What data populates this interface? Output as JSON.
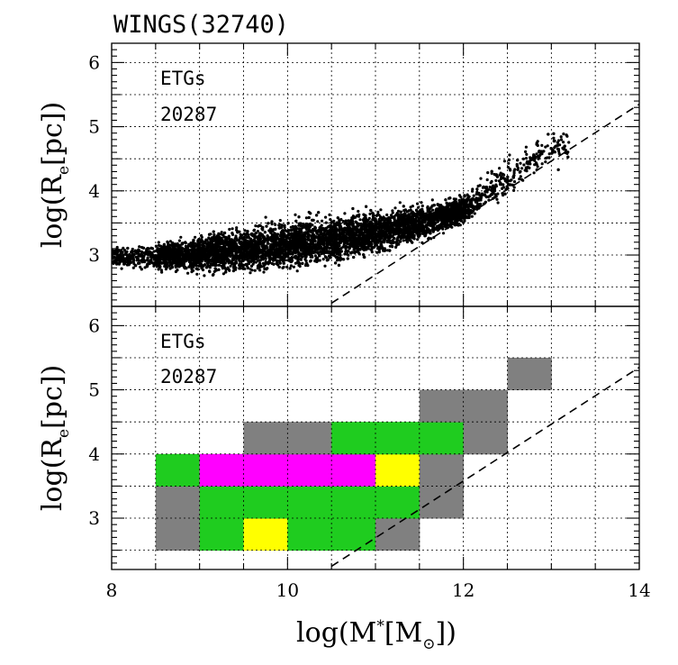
{
  "colors": {
    "grey": "#808080",
    "green": "#1fcc1f",
    "magenta": "#ff00ff",
    "yellow": "#ffff00",
    "black": "#000000"
  },
  "chart_data": [
    {
      "type": "scatter",
      "title": "WINGS(32740)",
      "annotation": "ETGs",
      "count": "20287",
      "ylabel": "log(R",
      "ylabel_sub": "e",
      "ylabel_end": "[pc])",
      "xlim": [
        8,
        14
      ],
      "ylim": [
        2.2,
        6.3
      ],
      "yticks": [
        3,
        4,
        5,
        6
      ],
      "grid": true,
      "dashed_line": {
        "x": [
          10.5,
          14
        ],
        "y": [
          2.25,
          5.35
        ]
      },
      "density_ridge": {
        "x": [
          8.0,
          8.5,
          9.0,
          9.5,
          10.0,
          10.5,
          11.0,
          11.5,
          12.0,
          12.5,
          13.0
        ],
        "y_mid": [
          2.95,
          2.98,
          3.02,
          3.08,
          3.17,
          3.25,
          3.35,
          3.5,
          3.7,
          4.2,
          4.7
        ],
        "half_width": [
          0.12,
          0.18,
          0.25,
          0.3,
          0.33,
          0.33,
          0.3,
          0.25,
          0.22,
          0.25,
          0.25
        ]
      }
    },
    {
      "type": "heatmap",
      "annotation": "ETGs",
      "count": "20287",
      "ylabel": "log(R",
      "ylabel_sub": "e",
      "ylabel_end": "[pc])",
      "xlabel": "log(M",
      "xlabel_sup": "*",
      "xlabel_mid": "[M",
      "xlabel_sun": "⊙",
      "xlabel_end": "])",
      "xlim": [
        8,
        14
      ],
      "ylim": [
        2.2,
        6.3
      ],
      "xticks": [
        8,
        10,
        12,
        14
      ],
      "yticks": [
        3,
        4,
        5,
        6
      ],
      "grid": true,
      "dashed_line": {
        "x": [
          10.5,
          14
        ],
        "y": [
          2.25,
          5.35
        ]
      },
      "cell_size": [
        0.5,
        0.5
      ],
      "cells": [
        {
          "x": 8.5,
          "y": 2.5,
          "c": "grey"
        },
        {
          "x": 9.0,
          "y": 2.5,
          "c": "green"
        },
        {
          "x": 9.5,
          "y": 2.5,
          "c": "yellow"
        },
        {
          "x": 10.0,
          "y": 2.5,
          "c": "green"
        },
        {
          "x": 10.5,
          "y": 2.5,
          "c": "green"
        },
        {
          "x": 11.0,
          "y": 2.5,
          "c": "grey"
        },
        {
          "x": 8.5,
          "y": 3.0,
          "c": "grey"
        },
        {
          "x": 9.0,
          "y": 3.0,
          "c": "green"
        },
        {
          "x": 9.5,
          "y": 3.0,
          "c": "green"
        },
        {
          "x": 10.0,
          "y": 3.0,
          "c": "green"
        },
        {
          "x": 10.5,
          "y": 3.0,
          "c": "green"
        },
        {
          "x": 11.0,
          "y": 3.0,
          "c": "green"
        },
        {
          "x": 11.5,
          "y": 3.0,
          "c": "grey"
        },
        {
          "x": 8.5,
          "y": 3.5,
          "c": "green"
        },
        {
          "x": 9.0,
          "y": 3.5,
          "c": "magenta"
        },
        {
          "x": 9.5,
          "y": 3.5,
          "c": "magenta"
        },
        {
          "x": 10.0,
          "y": 3.5,
          "c": "magenta"
        },
        {
          "x": 10.5,
          "y": 3.5,
          "c": "magenta"
        },
        {
          "x": 11.0,
          "y": 3.5,
          "c": "yellow"
        },
        {
          "x": 11.5,
          "y": 3.5,
          "c": "grey"
        },
        {
          "x": 9.5,
          "y": 4.0,
          "c": "grey"
        },
        {
          "x": 10.0,
          "y": 4.0,
          "c": "grey"
        },
        {
          "x": 10.5,
          "y": 4.0,
          "c": "green"
        },
        {
          "x": 11.0,
          "y": 4.0,
          "c": "green"
        },
        {
          "x": 11.5,
          "y": 4.0,
          "c": "green"
        },
        {
          "x": 12.0,
          "y": 4.0,
          "c": "grey"
        },
        {
          "x": 11.5,
          "y": 4.5,
          "c": "grey"
        },
        {
          "x": 12.0,
          "y": 4.5,
          "c": "grey"
        },
        {
          "x": 12.5,
          "y": 5.0,
          "c": "grey"
        }
      ]
    }
  ]
}
